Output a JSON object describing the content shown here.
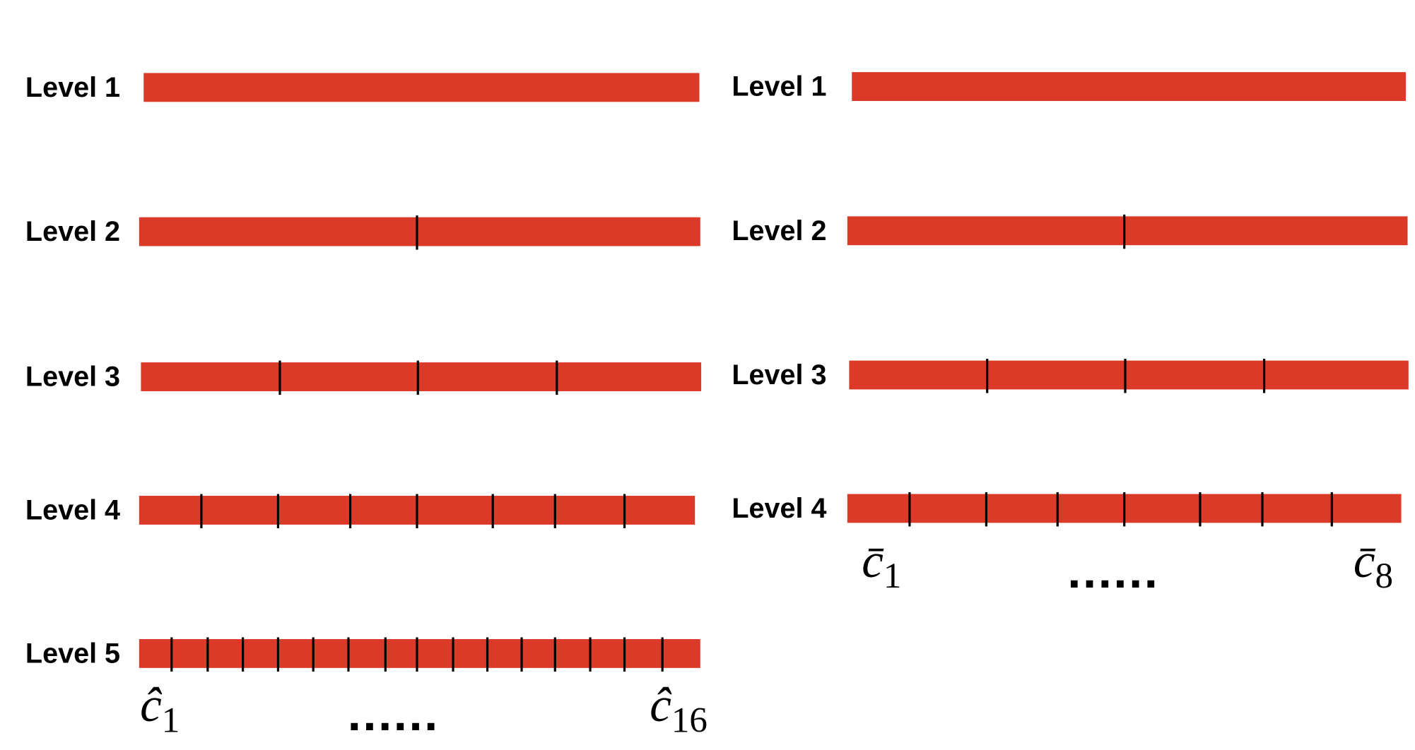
{
  "left": {
    "levels": [
      "Level 1",
      "Level 2",
      "Level 3",
      "Level 4",
      "Level 5"
    ],
    "first_label": {
      "symbol": "ĉ",
      "subscript": "1"
    },
    "ellipsis": "......",
    "last_label": {
      "symbol": "ĉ",
      "subscript": "16"
    }
  },
  "right": {
    "levels": [
      "Level 1",
      "Level 2",
      "Level 3",
      "Level 4"
    ],
    "first_label": {
      "symbol": "c̄",
      "subscript": "1"
    },
    "ellipsis": "......",
    "last_label": {
      "symbol": "c̄",
      "subscript": "8"
    }
  }
}
